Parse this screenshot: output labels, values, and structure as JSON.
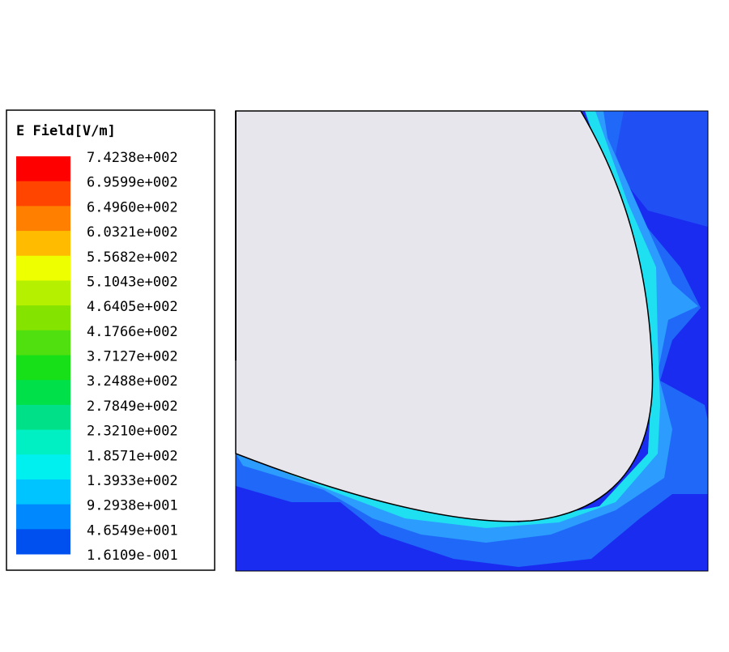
{
  "legend": {
    "title": "E Field[V/m]",
    "labels": [
      "7.4238e+002",
      "6.9599e+002",
      "6.4960e+002",
      "6.0321e+002",
      "5.5682e+002",
      "5.1043e+002",
      "4.6405e+002",
      "4.1766e+002",
      "3.7127e+002",
      "3.2488e+002",
      "2.7849e+002",
      "2.3210e+002",
      "1.8571e+002",
      "1.3933e+002",
      "9.2938e+001",
      "4.6549e+001",
      "1.6109e-001"
    ],
    "colors": [
      "#ff0000",
      "#ff4500",
      "#ff8000",
      "#ffbb00",
      "#eeff00",
      "#b4f000",
      "#84e400",
      "#50e010",
      "#18e018",
      "#00e048",
      "#00e088",
      "#00f0c4",
      "#00f0f0",
      "#00c4ff",
      "#0088ff",
      "#0050f0",
      "#0014f0"
    ]
  }
}
